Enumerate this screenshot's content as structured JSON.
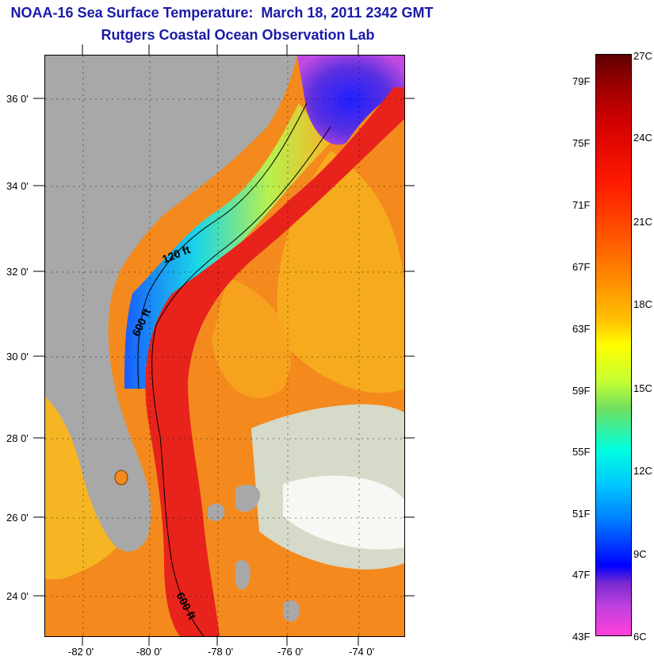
{
  "title": {
    "line1": "NOAA-16 Sea Surface Temperature:  March 18, 2011 2342 GMT",
    "line2": "Rutgers Coastal Ocean Observation Lab"
  },
  "map": {
    "lat_labels": [
      "36 0'",
      "34 0'",
      "32 0'",
      "30 0'",
      "28 0'",
      "26 0'",
      "24 0'"
    ],
    "lon_labels": [
      "-82 0'",
      "-80 0'",
      "-78 0'",
      "-76 0'",
      "-74 0'"
    ],
    "contour_labels": [
      "120 ft",
      "600 ft",
      "600 ft"
    ],
    "land_color": "#a8a8a8",
    "ocean_warm_color": "#f48a1e",
    "gulf_stream_color": "#e8231c"
  },
  "colorbar": {
    "fahrenheit_labels": [
      "79F",
      "75F",
      "71F",
      "67F",
      "63F",
      "59F",
      "55F",
      "51F",
      "47F",
      "43F"
    ],
    "celsius_labels": [
      "27C",
      "24C",
      "21C",
      "18C",
      "15C",
      "12C",
      "9C",
      "6C"
    ]
  }
}
